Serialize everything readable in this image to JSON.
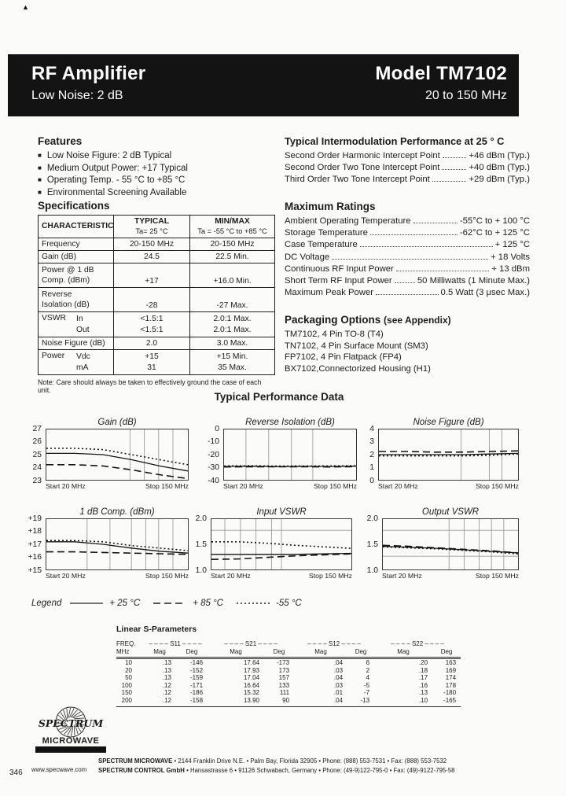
{
  "corner_mark": "▲",
  "header": {
    "title": "RF Amplifier",
    "subtitle": "Low Noise: 2 dB",
    "model": "Model TM7102",
    "range": "20 to 150 MHz"
  },
  "features": {
    "heading": "Features",
    "bullet": "■",
    "items": [
      "Low Noise Figure: 2 dB Typical",
      "Medium Output Power: +17 Typical",
      "Operating Temp. - 55 °C to +85 °C",
      "Environmental Screening Available"
    ]
  },
  "intermod": {
    "heading": "Typical Intermodulation Performance at 25 ° C",
    "rows": [
      {
        "label": "Second Order Harmonic Intercept Point",
        "value": "+46 dBm (Typ.)"
      },
      {
        "label": "Second Order Two Tone Intercept Point",
        "value": "+40 dBm (Typ.)"
      },
      {
        "label": "Third Order Two Tone Intercept Point",
        "value": "+29 dBm (Typ.)"
      }
    ]
  },
  "specs": {
    "heading": "Specifications",
    "columns": {
      "characteristic": "CHARACTERISTIC",
      "typical": "TYPICAL",
      "typical_sub": "Ta= 25 °C",
      "minmax": "MIN/MAX",
      "minmax_sub": "Ta = -55 °C to +85 °C"
    },
    "rows": [
      {
        "label": "Frequency",
        "typ": [
          "20-150 MHz"
        ],
        "mm": [
          "20-150 MHz"
        ]
      },
      {
        "label": "Gain (dB)",
        "typ": [
          "24.5"
        ],
        "mm": [
          "22.5 Min."
        ]
      },
      {
        "label": "Power @ 1 dB",
        "label2": "Comp. (dBm)",
        "typ": [
          "+17"
        ],
        "mm": [
          "+16.0 Min."
        ]
      },
      {
        "label": "Reverse",
        "label2": "Isolation (dB)",
        "typ": [
          "-28"
        ],
        "mm": [
          "-27 Max."
        ]
      },
      {
        "label": "VSWR",
        "sub": [
          "In",
          "Out"
        ],
        "typ": [
          "<1.5:1",
          "<1.5:1"
        ],
        "mm": [
          "2.0:1  Max.",
          "2.0:1  Max."
        ]
      },
      {
        "label": "Noise Figure (dB)",
        "typ": [
          "2.0"
        ],
        "mm": [
          "3.0 Max."
        ]
      },
      {
        "label": "Power",
        "sub": [
          "Vdc",
          "mA"
        ],
        "typ": [
          "+15",
          "31"
        ],
        "mm": [
          "+15 Min.",
          "35 Max."
        ]
      }
    ],
    "note": "Note: Care should always be taken to effectively ground the case of each unit."
  },
  "ratings": {
    "heading": "Maximum Ratings",
    "rows": [
      {
        "label": "Ambient Operating Temperature",
        "value": "-55°C to + 100 °C"
      },
      {
        "label": "Storage Temperature",
        "value": "-62°C to + 125 °C"
      },
      {
        "label": "Case Temperature",
        "value": "+ 125 °C"
      },
      {
        "label": "DC Voltage",
        "value": "+ 18 Volts"
      },
      {
        "label": "Continuous RF Input Power",
        "value": "+ 13 dBm"
      },
      {
        "label": "Short Term RF Input Power",
        "value": "50 Milliwatts (1 Minute Max.)"
      },
      {
        "label": "Maximum Peak Power",
        "value": "0.5 Watt (3 μsec Max.)"
      }
    ]
  },
  "packaging": {
    "heading": "Packaging Options",
    "note": "(see Appendix)",
    "items": [
      "TM7102, 4 Pin TO-8 (T4)",
      "TN7102, 4 Pin Surface Mount (SM3)",
      "FP7102, 4 Pin Flatpack (FP4)",
      "BX7102,Connectorized Housing (H1)"
    ]
  },
  "performance_heading": "Typical Performance Data",
  "legend": {
    "label": "Legend",
    "items": [
      {
        "style": "solid",
        "label": "+ 25 °C"
      },
      {
        "style": "dashed",
        "label": "+ 85 °C"
      },
      {
        "style": "dotted",
        "label": "-55 °C"
      }
    ]
  },
  "chart_data": [
    {
      "type": "line",
      "id": "gain",
      "title": "Gain (dB)",
      "xlabel_start": "Start 20 MHz",
      "xlabel_stop": "Stop 150 MHz",
      "x_range_mhz": [
        20,
        150
      ],
      "ylim": [
        23,
        27
      ],
      "yticks": [
        27,
        26,
        25,
        24,
        23
      ],
      "ytick_labels": [
        "27",
        "26",
        "25",
        "24",
        "23"
      ],
      "vgrid": [
        0.59,
        0.69,
        0.79,
        0.89
      ],
      "hgrid": [],
      "series": [
        {
          "name": "+ 25 °C",
          "style": "solid",
          "y": [
            25.1,
            25.1,
            25.0,
            24.6,
            24.1,
            23.7
          ]
        },
        {
          "name": "+ 85 °C",
          "style": "dashed",
          "y": [
            24.2,
            24.2,
            24.1,
            23.8,
            23.4,
            23.1
          ]
        },
        {
          "name": "-55 °C",
          "style": "dotted",
          "y": [
            25.5,
            25.5,
            25.4,
            25.0,
            24.6,
            24.2
          ]
        }
      ]
    },
    {
      "type": "line",
      "id": "reverse-isolation",
      "title": "Reverse Isolation (dB)",
      "xlabel_start": "Start 20 MHz",
      "xlabel_stop": "Stop 150 MHz",
      "x_range_mhz": [
        20,
        150
      ],
      "ylim": [
        -40,
        0
      ],
      "yticks": [
        0,
        -10,
        -20,
        -30,
        -40
      ],
      "ytick_labels": [
        "0",
        "-10",
        "-20",
        "-30",
        "-40"
      ],
      "vgrid": [
        0.17,
        0.34,
        0.51,
        0.67
      ],
      "hgrid": [],
      "series": [
        {
          "name": "+ 25 °C",
          "style": "solid",
          "y": [
            -29.4,
            -29.2,
            -29.5,
            -29.3,
            -29.4,
            -29.2
          ]
        },
        {
          "name": "+ 85 °C",
          "style": "dashed",
          "y": [
            -29.8,
            -29.6,
            -29.7,
            -29.6,
            -29.8,
            -29.5
          ]
        },
        {
          "name": "-55 °C",
          "style": "dotted",
          "y": [
            -29.0,
            -28.9,
            -29.1,
            -29.0,
            -29.0,
            -28.8
          ]
        }
      ]
    },
    {
      "type": "line",
      "id": "noise-figure",
      "title": "Noise Figure (dB)",
      "xlabel_start": "Start 20 MHz",
      "xlabel_stop": "Stop 150 MHz",
      "x_range_mhz": [
        20,
        150
      ],
      "ylim": [
        0,
        4
      ],
      "yticks": [
        4,
        3,
        2,
        1,
        0
      ],
      "ytick_labels": [
        "4",
        "3",
        "2",
        "1",
        "0"
      ],
      "vgrid": [
        0.59,
        0.79,
        0.88
      ],
      "hgrid": [],
      "series": [
        {
          "name": "+ 25 °C",
          "style": "solid",
          "y": [
            2.0,
            2.0,
            2.0,
            2.0,
            2.05,
            2.1
          ]
        },
        {
          "name": "+ 85 °C",
          "style": "dashed",
          "y": [
            2.25,
            2.25,
            2.2,
            2.2,
            2.25,
            2.3
          ]
        },
        {
          "name": "-55 °C",
          "style": "dotted",
          "y": [
            1.9,
            1.9,
            1.9,
            1.9,
            1.95,
            2.05
          ]
        }
      ]
    },
    {
      "type": "line",
      "id": "comp-1db",
      "title": "1 dB Comp. (dBm)",
      "xlabel_start": "Start 20 MHz",
      "xlabel_stop": "Stop 150 MHz",
      "x_range_mhz": [
        20,
        150
      ],
      "ylim": [
        15,
        19
      ],
      "yticks": [
        19,
        18,
        17,
        16,
        15
      ],
      "ytick_labels": [
        "+19",
        "+18",
        "+17",
        "+16",
        "+15"
      ],
      "vgrid": [
        0.29,
        0.45,
        0.6,
        0.7,
        0.79,
        0.89
      ],
      "hgrid": [],
      "series": [
        {
          "name": "+ 25 °C",
          "style": "solid",
          "y": [
            17.2,
            17.2,
            17.0,
            16.7,
            16.45,
            16.3
          ]
        },
        {
          "name": "+ 85 °C",
          "style": "dashed",
          "y": [
            16.4,
            16.4,
            16.35,
            16.3,
            16.25,
            16.2
          ]
        },
        {
          "name": "-55 °C",
          "style": "dotted",
          "y": [
            17.3,
            17.3,
            17.2,
            16.9,
            16.7,
            16.5
          ]
        }
      ]
    },
    {
      "type": "line",
      "id": "input-vswr",
      "title": "Input VSWR",
      "xlabel_start": "Start 20 MHz",
      "xlabel_stop": "Stop 150 MHz",
      "x_range_mhz": [
        20,
        150
      ],
      "ylim": [
        1.0,
        2.0
      ],
      "yticks": [
        2.0,
        1.5,
        1.0
      ],
      "ytick_labels": [
        "2.0",
        "1.5",
        "1.0"
      ],
      "vgrid": [
        0.1,
        0.21,
        0.32,
        0.43,
        0.5
      ],
      "hgrid": [
        1.77
      ],
      "series": [
        {
          "name": "+ 25 °C",
          "style": "solid",
          "y": [
            1.3,
            1.3,
            1.3,
            1.3,
            1.31,
            1.32
          ]
        },
        {
          "name": "+ 85 °C",
          "style": "dashed",
          "y": [
            1.2,
            1.21,
            1.24,
            1.27,
            1.29,
            1.31
          ]
        },
        {
          "name": "-55 °C",
          "style": "dotted",
          "y": [
            1.55,
            1.55,
            1.52,
            1.48,
            1.45,
            1.42
          ]
        }
      ]
    },
    {
      "type": "line",
      "id": "output-vswr",
      "title": "Output VSWR",
      "xlabel_start": "Start 20 MHz",
      "xlabel_stop": "Stop 150 MHz",
      "x_range_mhz": [
        20,
        150
      ],
      "ylim": [
        1.0,
        2.0
      ],
      "yticks": [
        2.0,
        1.5,
        1.0
      ],
      "ytick_labels": [
        "2.0",
        "1.5",
        "1.0"
      ],
      "vgrid": [
        0.49,
        0.6,
        0.71,
        0.8,
        0.89
      ],
      "hgrid": [
        1.77,
        1.27
      ],
      "series": [
        {
          "name": "+ 25 °C",
          "style": "solid",
          "y": [
            1.46,
            1.44,
            1.42,
            1.39,
            1.36,
            1.33
          ]
        },
        {
          "name": "+ 85 °C",
          "style": "dashed",
          "y": [
            1.48,
            1.46,
            1.43,
            1.4,
            1.37,
            1.33
          ]
        },
        {
          "name": "-55 °C",
          "style": "dotted",
          "y": [
            1.45,
            1.43,
            1.41,
            1.38,
            1.35,
            1.31
          ]
        }
      ]
    }
  ],
  "sparams": {
    "heading": "Linear S-Parameters",
    "freq_label": "FREQ.",
    "freq_unit": "MHz",
    "groups": [
      "– – – – S11 – – – –",
      "– – – – S21 – – – –",
      "– – – – S12 – – – –",
      "– – – – S22 – – – –"
    ],
    "mag": "Mag",
    "deg": "Deg",
    "rows": [
      [
        "10",
        ".13",
        "-146",
        "17.64",
        "-173",
        ".04",
        "6",
        ".20",
        "163"
      ],
      [
        "20",
        ".13",
        "-152",
        "17.93",
        "173",
        ".03",
        "2",
        ".18",
        "169"
      ],
      [
        "50",
        ".13",
        "-159",
        "17.04",
        "157",
        ".04",
        "4",
        ".17",
        "174"
      ],
      [
        "100",
        ".12",
        "-171",
        "16.64",
        "133",
        ".03",
        "-5",
        ".16",
        "178"
      ],
      [
        "150",
        ".12",
        "-186",
        "15.32",
        "111",
        ".01",
        "-7",
        ".13",
        "-180"
      ],
      [
        "200",
        ".12",
        "-158",
        "13.90",
        "90",
        ".04",
        "-13",
        ".10",
        "-165"
      ]
    ]
  },
  "logo": {
    "top": "SPECTRUM",
    "bottom": "MICROWAVE"
  },
  "footer": {
    "line1_company": "SPECTRUM MICROWAVE",
    "line1": "•  2144 Franklin Drive N.E.  •  Palm Bay, Florida 32905  •  Phone: (888) 553-7531  •  Fax: (888) 553-7532",
    "line2_company": "SPECTRUM CONTROL GmbH",
    "line2": "•  Hansastrasse 6  •  91126 Schwabach, Germany  •  Phone: (49-9)122-795-0  •  Fax: (49)-9122-795-58",
    "website": "www.specwave.com",
    "page_number": "346"
  }
}
